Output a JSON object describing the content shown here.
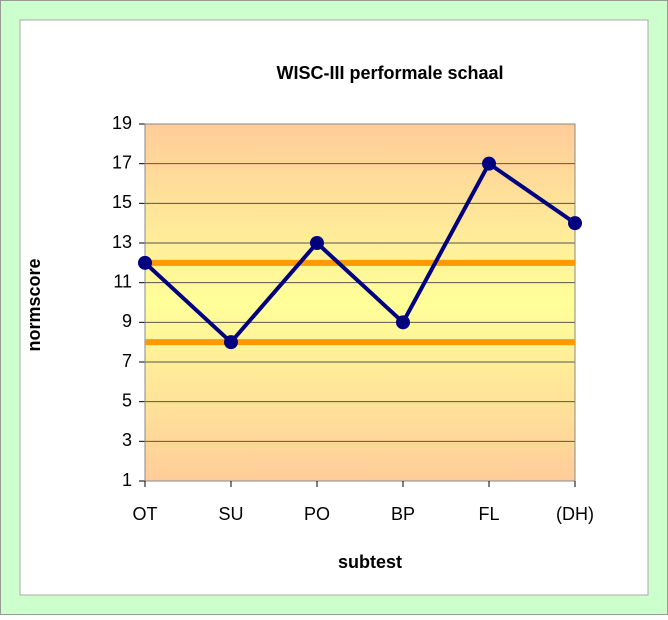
{
  "chart_data": {
    "type": "line",
    "title": "WISC-III performale schaal",
    "x_label": "subtest",
    "y_label": "normscore",
    "categories": [
      "OT",
      "SU",
      "PO",
      "BP",
      "FL",
      "(DH)"
    ],
    "values": [
      12,
      8,
      13,
      9,
      17,
      14
    ],
    "color": "#000080",
    "reference_lines": [
      12,
      8
    ],
    "reference_color": "#ff9900",
    "ylim": [
      1,
      19
    ],
    "yticks": [
      1,
      3,
      5,
      7,
      9,
      11,
      13,
      15,
      17,
      19
    ],
    "grid": true
  }
}
